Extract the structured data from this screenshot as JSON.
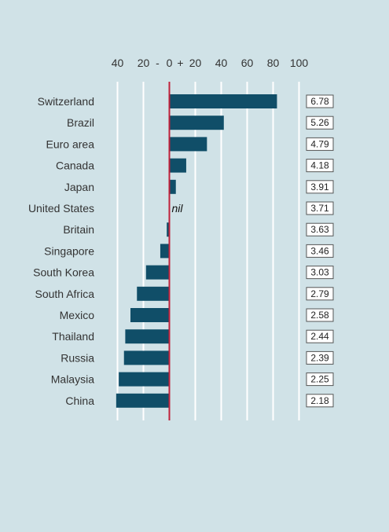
{
  "chart_data": {
    "type": "bar",
    "orientation": "horizontal",
    "categories": [
      "Switzerland",
      "Brazil",
      "Euro area",
      "Canada",
      "Japan",
      "United States",
      "Britain",
      "Singapore",
      "South Korea",
      "South Africa",
      "Mexico",
      "Thailand",
      "Russia",
      "Malaysia",
      "China"
    ],
    "values": [
      83,
      42,
      29,
      13,
      5,
      0,
      -2,
      -7,
      -18,
      -25,
      -30,
      -34,
      -35,
      -39,
      -41
    ],
    "price_labels": [
      "6.78",
      "5.26",
      "4.79",
      "4.18",
      "3.91",
      "3.71",
      "3.63",
      "3.46",
      "3.03",
      "2.79",
      "2.58",
      "2.44",
      "2.39",
      "2.25",
      "2.18"
    ],
    "zero_label": "nil",
    "x_ticks_under": [
      "40",
      "20"
    ],
    "x_ticks_over": [
      "0",
      "20",
      "40",
      "60",
      "80",
      "100"
    ],
    "minus_sign": "-",
    "plus_sign": "+",
    "xlim": [
      -40,
      100
    ],
    "grid": true,
    "colors": {
      "bar": "#104e68",
      "zero_line": "#c0203a",
      "grid": "#ffffff",
      "background": "#d0e2e7"
    }
  }
}
